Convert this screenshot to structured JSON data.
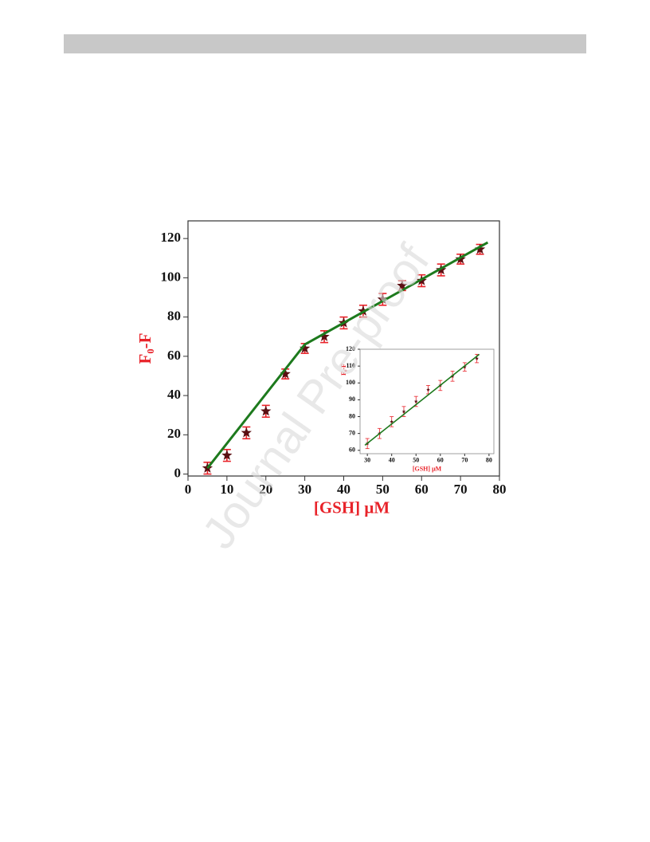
{
  "watermark": "Journal Pre-proof",
  "chart_data": [
    {
      "type": "scatter",
      "xlabel": "[GSH] μM",
      "ylabel": "F₀-F",
      "xlim": [
        0,
        80
      ],
      "ylim": [
        -1,
        129
      ],
      "xticks": [
        0,
        10,
        20,
        30,
        40,
        50,
        60,
        70,
        80
      ],
      "yticks": [
        0,
        20,
        40,
        60,
        80,
        100,
        120
      ],
      "series": [
        {
          "color": "#5a0f12",
          "error_color": "#e8232a",
          "marker": "star",
          "x": [
            5,
            10,
            15,
            20,
            25,
            30,
            35,
            40,
            45,
            50,
            55,
            60,
            65,
            70,
            75
          ],
          "values": [
            3,
            9.5,
            21,
            32,
            51,
            64,
            70,
            77,
            83,
            89,
            96,
            98.5,
            104,
            109.5,
            114.5
          ],
          "errors": [
            3,
            3,
            3,
            3,
            2.5,
            2.5,
            3,
            3,
            3,
            3,
            2.5,
            3,
            3,
            2.5,
            2.5
          ]
        },
        {
          "color": "#1d7a1d",
          "marker": "line",
          "x": [
            5,
            30,
            77
          ],
          "values": [
            3,
            66,
            118
          ]
        }
      ]
    },
    {
      "type": "scatter",
      "xlabel": "[GSH] μM",
      "ylabel": "F₀-F",
      "xlim": [
        27,
        82
      ],
      "ylim": [
        58,
        120
      ],
      "xticks": [
        30,
        40,
        50,
        60,
        70,
        80
      ],
      "yticks": [
        60,
        70,
        80,
        90,
        100,
        110,
        120
      ],
      "series": [
        {
          "color": "#5a0f12",
          "error_color": "#e8232a",
          "marker": "star",
          "x": [
            30,
            35,
            40,
            45,
            50,
            55,
            60,
            65,
            70,
            75
          ],
          "values": [
            64,
            70,
            77,
            83,
            89,
            96,
            98.5,
            104,
            109.5,
            114.5
          ],
          "errors": [
            3,
            3,
            3,
            3,
            3,
            2.5,
            3,
            3,
            2.5,
            2.5
          ]
        },
        {
          "color": "#1d7a1d",
          "marker": "line",
          "x": [
            29,
            76
          ],
          "values": [
            63,
            117
          ]
        }
      ]
    }
  ]
}
